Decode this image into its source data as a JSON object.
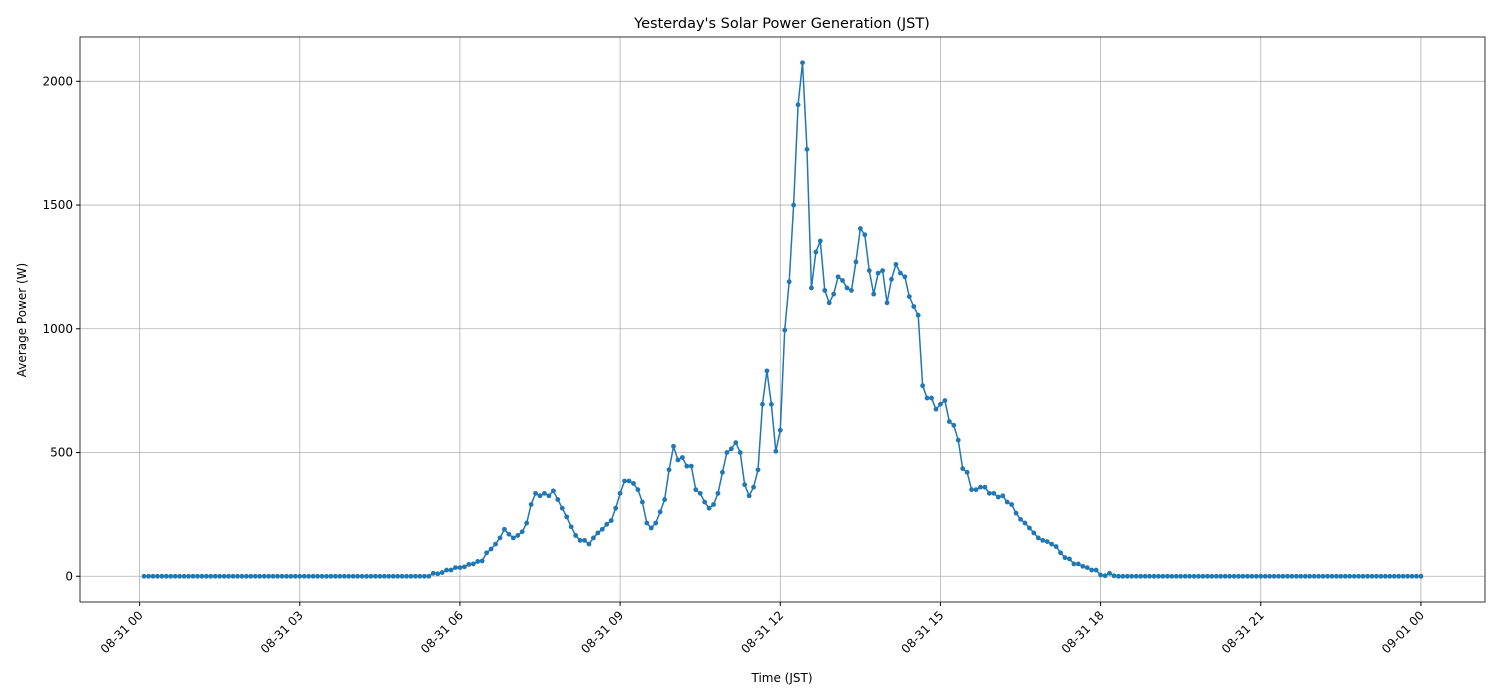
{
  "chart_data": {
    "type": "line",
    "title": "Yesterday's Solar Power Generation (JST)",
    "xlabel": "Time (JST)",
    "ylabel": "Average Power (W)",
    "x": [
      5,
      10,
      15,
      20,
      25,
      30,
      35,
      40,
      45,
      50,
      55,
      60,
      65,
      70,
      75,
      80,
      85,
      90,
      95,
      100,
      105,
      110,
      115,
      120,
      125,
      130,
      135,
      140,
      145,
      150,
      155,
      160,
      165,
      170,
      175,
      180,
      185,
      190,
      195,
      200,
      205,
      210,
      215,
      220,
      225,
      230,
      235,
      240,
      245,
      250,
      255,
      260,
      265,
      270,
      275,
      280,
      285,
      290,
      295,
      300,
      305,
      310,
      315,
      320,
      325,
      330,
      335,
      340,
      345,
      350,
      355,
      360,
      365,
      370,
      375,
      380,
      385,
      390,
      395,
      400,
      405,
      410,
      415,
      420,
      425,
      430,
      435,
      440,
      445,
      450,
      455,
      460,
      465,
      470,
      475,
      480,
      485,
      490,
      495,
      500,
      505,
      510,
      515,
      520,
      525,
      530,
      535,
      540,
      545,
      550,
      555,
      560,
      565,
      570,
      575,
      580,
      585,
      590,
      595,
      600,
      605,
      610,
      615,
      620,
      625,
      630,
      635,
      640,
      645,
      650,
      655,
      660,
      665,
      670,
      675,
      680,
      685,
      690,
      695,
      700,
      705,
      710,
      715,
      720,
      725,
      730,
      735,
      740,
      745,
      750,
      755,
      760,
      765,
      770,
      775,
      780,
      785,
      790,
      795,
      800,
      805,
      810,
      815,
      820,
      825,
      830,
      835,
      840,
      845,
      850,
      855,
      860,
      865,
      870,
      875,
      880,
      885,
      890,
      895,
      900,
      905,
      910,
      915,
      920,
      925,
      930,
      935,
      940,
      945,
      950,
      955,
      960,
      965,
      970,
      975,
      980,
      985,
      990,
      995,
      1000,
      1005,
      1010,
      1015,
      1020,
      1025,
      1030,
      1035,
      1040,
      1045,
      1050,
      1055,
      1060,
      1065,
      1070,
      1075,
      1080,
      1085,
      1090,
      1095,
      1100,
      1105,
      1110,
      1115,
      1120,
      1125,
      1130,
      1135,
      1140,
      1145,
      1150,
      1155,
      1160,
      1165,
      1170,
      1175,
      1180,
      1185,
      1190,
      1195,
      1200,
      1205,
      1210,
      1215,
      1220,
      1225,
      1230,
      1235,
      1240,
      1245,
      1250,
      1255,
      1260,
      1265,
      1270,
      1275,
      1280,
      1285,
      1290,
      1295,
      1300,
      1305,
      1310,
      1315,
      1320,
      1325,
      1330,
      1335,
      1340,
      1345,
      1350,
      1355,
      1360,
      1365,
      1370,
      1375,
      1380,
      1385,
      1390,
      1395,
      1400,
      1405,
      1410,
      1415,
      1420,
      1425,
      1430,
      1435,
      1440
    ],
    "series": [
      {
        "name": "Average Power (W)",
        "color": "#1f77b4",
        "values": [
          0,
          0,
          0,
          0,
          0,
          0,
          0,
          0,
          0,
          0,
          0,
          0,
          0,
          0,
          0,
          0,
          0,
          0,
          0,
          0,
          0,
          0,
          0,
          0,
          0,
          0,
          0,
          0,
          0,
          0,
          0,
          0,
          0,
          0,
          0,
          0,
          0,
          0,
          0,
          0,
          0,
          0,
          0,
          0,
          0,
          0,
          0,
          0,
          0,
          0,
          0,
          0,
          0,
          0,
          0,
          0,
          0,
          0,
          0,
          0,
          0,
          0,
          0,
          0,
          0,
          12,
          10,
          15,
          25,
          25,
          35,
          35,
          38,
          48,
          50,
          60,
          62,
          95,
          110,
          130,
          155,
          190,
          170,
          155,
          165,
          180,
          215,
          290,
          335,
          325,
          335,
          325,
          345,
          310,
          275,
          240,
          200,
          165,
          145,
          145,
          130,
          155,
          175,
          190,
          210,
          225,
          275,
          335,
          385,
          385,
          375,
          350,
          300,
          215,
          195,
          215,
          260,
          310,
          430,
          525,
          470,
          480,
          445,
          445,
          350,
          335,
          300,
          275,
          290,
          335,
          420,
          500,
          515,
          540,
          500,
          370,
          325,
          360,
          430,
          695,
          830,
          695,
          505,
          590,
          995,
          1190,
          1500,
          1905,
          2075,
          1725,
          1165,
          1310,
          1355,
          1155,
          1105,
          1140,
          1210,
          1195,
          1165,
          1155,
          1270,
          1405,
          1380,
          1235,
          1140,
          1225,
          1235,
          1105,
          1200,
          1260,
          1225,
          1210,
          1130,
          1090,
          1055,
          770,
          720,
          720,
          675,
          695,
          710,
          625,
          610,
          550,
          435,
          420,
          350,
          350,
          360,
          360,
          335,
          335,
          320,
          325,
          300,
          290,
          255,
          230,
          215,
          195,
          175,
          155,
          145,
          140,
          130,
          120,
          95,
          75,
          70,
          50,
          50,
          40,
          35,
          25,
          25,
          5,
          2,
          12,
          2,
          0,
          0,
          0,
          0,
          0,
          0,
          0,
          0,
          0,
          0,
          0,
          0,
          0,
          0,
          0,
          0,
          0,
          0,
          0,
          0,
          0,
          0,
          0,
          0,
          0,
          0,
          0,
          0,
          0,
          0,
          0,
          0,
          0,
          0,
          0,
          0,
          0,
          0,
          0,
          0,
          0,
          0,
          0,
          0,
          0,
          0,
          0,
          0,
          0,
          0,
          0,
          0,
          0,
          0,
          0,
          0,
          0,
          0,
          0,
          0,
          0,
          0,
          0,
          0,
          0,
          0,
          0,
          0,
          0
        ]
      }
    ],
    "xlim": [
      -67,
      1512
    ],
    "ylim": [
      -104,
      2179
    ],
    "xticks": [
      {
        "value": 0,
        "label": "08-31 00"
      },
      {
        "value": 180,
        "label": "08-31 03"
      },
      {
        "value": 360,
        "label": "08-31 06"
      },
      {
        "value": 540,
        "label": "08-31 09"
      },
      {
        "value": 720,
        "label": "08-31 12"
      },
      {
        "value": 900,
        "label": "08-31 15"
      },
      {
        "value": 1080,
        "label": "08-31 18"
      },
      {
        "value": 1260,
        "label": "08-31 21"
      },
      {
        "value": 1440,
        "label": "09-01 00"
      }
    ],
    "yticks": [
      0,
      500,
      1000,
      1500,
      2000
    ],
    "grid": true,
    "markers": true
  }
}
